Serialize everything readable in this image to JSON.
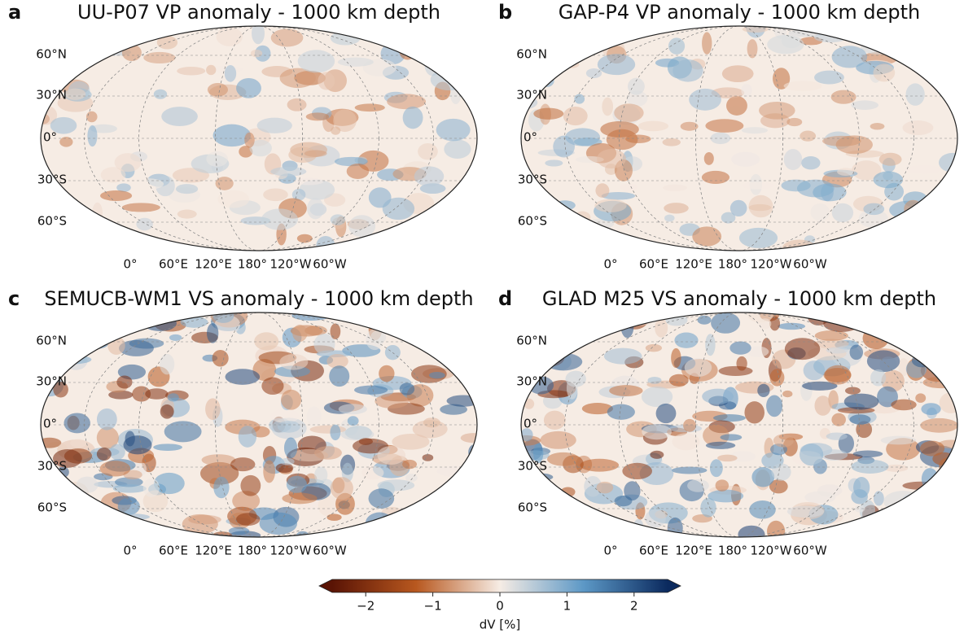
{
  "panels": [
    {
      "letter": "a",
      "title": "UU-P07 VP anomaly - 1000 km depth",
      "lat_labels": [
        "60°N",
        "30°N",
        "0°",
        "30°S",
        "60°S"
      ],
      "lon_labels": [
        "0°",
        "60°E",
        "120°E",
        "180°",
        "120°W",
        "60°W"
      ]
    },
    {
      "letter": "b",
      "title": "GAP-P4 VP anomaly - 1000 km depth",
      "lat_labels": [
        "60°N",
        "30°N",
        "0°",
        "30°S",
        "60°S"
      ],
      "lon_labels": [
        "0°",
        "60°E",
        "120°E",
        "180°",
        "120°W",
        "60°W"
      ]
    },
    {
      "letter": "c",
      "title": "SEMUCB-WM1 VS anomaly - 1000 km depth",
      "lat_labels": [
        "60°N",
        "30°N",
        "0°",
        "30°S",
        "60°S"
      ],
      "lon_labels": [
        "0°",
        "60°E",
        "120°E",
        "180°",
        "120°W",
        "60°W"
      ]
    },
    {
      "letter": "d",
      "title": "GLAD M25 VS anomaly - 1000 km depth",
      "lat_labels": [
        "60°N",
        "30°N",
        "0°",
        "30°S",
        "60°S"
      ],
      "lon_labels": [
        "0°",
        "60°E",
        "120°E",
        "180°",
        "120°W",
        "60°W"
      ]
    }
  ],
  "colorbar": {
    "label": "dV [%]",
    "lim": [
      -2.5,
      2.5
    ],
    "ticks": [
      {
        "value": -2,
        "label": "−2"
      },
      {
        "value": -1,
        "label": "−1"
      },
      0,
      1,
      2
    ],
    "colors": [
      "#5a1405",
      "#b8581f",
      "#f6ece4",
      "#5c98c6",
      "#0b2a5e"
    ]
  }
}
